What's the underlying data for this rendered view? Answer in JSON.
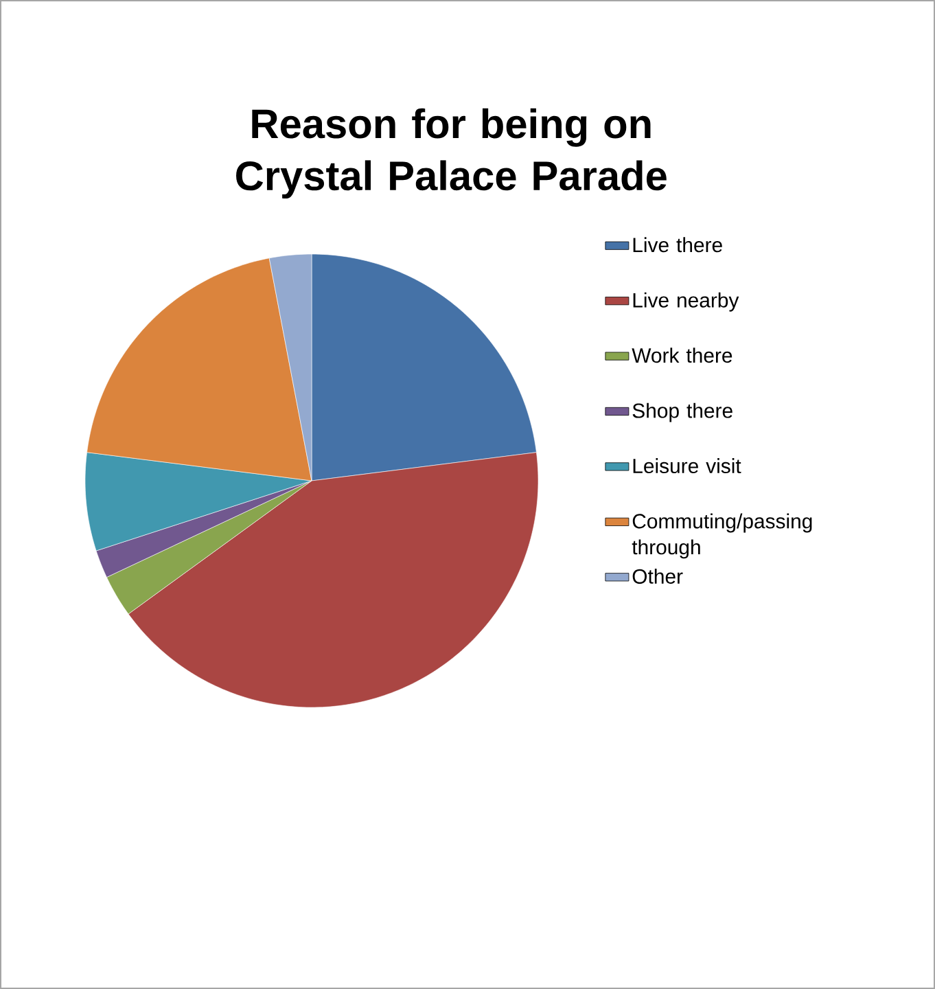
{
  "chart_data": {
    "type": "pie",
    "title": "Reason for being on Crystal Palace Parade",
    "categories": [
      "Live there",
      "Live nearby",
      "Work there",
      "Shop there",
      "Leisure visit",
      "Commuting/passing through",
      "Other"
    ],
    "values": [
      23,
      42,
      3,
      2,
      7,
      20,
      3
    ],
    "colors": [
      "#4572a7",
      "#aa4643",
      "#89a54e",
      "#71588f",
      "#4198af",
      "#db843d",
      "#93a9cf"
    ],
    "legend": "right"
  }
}
